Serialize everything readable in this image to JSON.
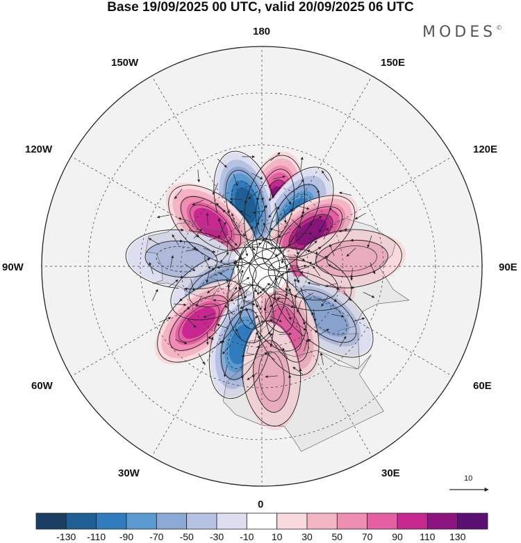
{
  "header": {
    "title": "Base 19/09/2025 00 UTC, valid 20/09/2025 06 UTC",
    "brand": "MODES",
    "brand_mark": "©"
  },
  "map": {
    "projection": "north-polar-stereographic",
    "longitude_labels": {
      "n180": "180",
      "e150": "150E",
      "e120": "120E",
      "e90": "90E",
      "e60": "60E",
      "e30": "30E",
      "s0": "0",
      "w30": "30W",
      "w60": "60W",
      "w90": "90W",
      "w120": "120W",
      "w150": "150W"
    },
    "wind_reference": {
      "label": "10",
      "value": 10
    },
    "anomaly_centers": [
      {
        "lon": 168,
        "lat": 50,
        "value": 110,
        "sign": "positive"
      },
      {
        "lon": 147,
        "lat": 52,
        "value": -100,
        "sign": "negative"
      },
      {
        "lon": -165,
        "lat": 50,
        "value": -110,
        "sign": "negative"
      },
      {
        "lon": 125,
        "lat": 52,
        "value": 110,
        "sign": "positive"
      },
      {
        "lon": -130,
        "lat": 48,
        "value": 100,
        "sign": "positive"
      },
      {
        "lon": -95,
        "lat": 40,
        "value": -40,
        "sign": "negative"
      },
      {
        "lon": 72,
        "lat": 62,
        "value": 80,
        "sign": "positive"
      },
      {
        "lon": -65,
        "lat": 62,
        "value": -50,
        "sign": "negative"
      },
      {
        "lon": -10,
        "lat": 72,
        "value": 80,
        "sign": "positive"
      },
      {
        "lon": 20,
        "lat": 68,
        "value": -70,
        "sign": "negative"
      },
      {
        "lon": 52,
        "lat": 40,
        "value": -60,
        "sign": "negative"
      },
      {
        "lon": -48,
        "lat": 38,
        "value": 100,
        "sign": "positive"
      },
      {
        "lon": -15,
        "lat": 40,
        "value": -90,
        "sign": "negative"
      },
      {
        "lon": 22,
        "lat": 48,
        "value": 80,
        "sign": "positive"
      },
      {
        "lon": 95,
        "lat": 35,
        "value": 40,
        "sign": "positive"
      },
      {
        "lon": 5,
        "lat": 25,
        "value": 40,
        "sign": "positive"
      }
    ]
  },
  "colorbar": {
    "labels": [
      "-130",
      "-110",
      "-90",
      "-70",
      "-50",
      "-30",
      "-10",
      "10",
      "30",
      "50",
      "70",
      "90",
      "110",
      "130"
    ],
    "levels": [
      -150,
      -130,
      -110,
      -90,
      -70,
      -50,
      -30,
      -10,
      10,
      30,
      50,
      70,
      90,
      110,
      130,
      150
    ],
    "colors": [
      "#1b3f63",
      "#1f5e93",
      "#2f7bbe",
      "#5a9ad0",
      "#8ca9d6",
      "#b7c1e2",
      "#dddff0",
      "#ffffff",
      "#f8d9de",
      "#f3b4c4",
      "#ee8eb2",
      "#e65fa3",
      "#c62890",
      "#8d1480",
      "#5a0f73"
    ]
  }
}
